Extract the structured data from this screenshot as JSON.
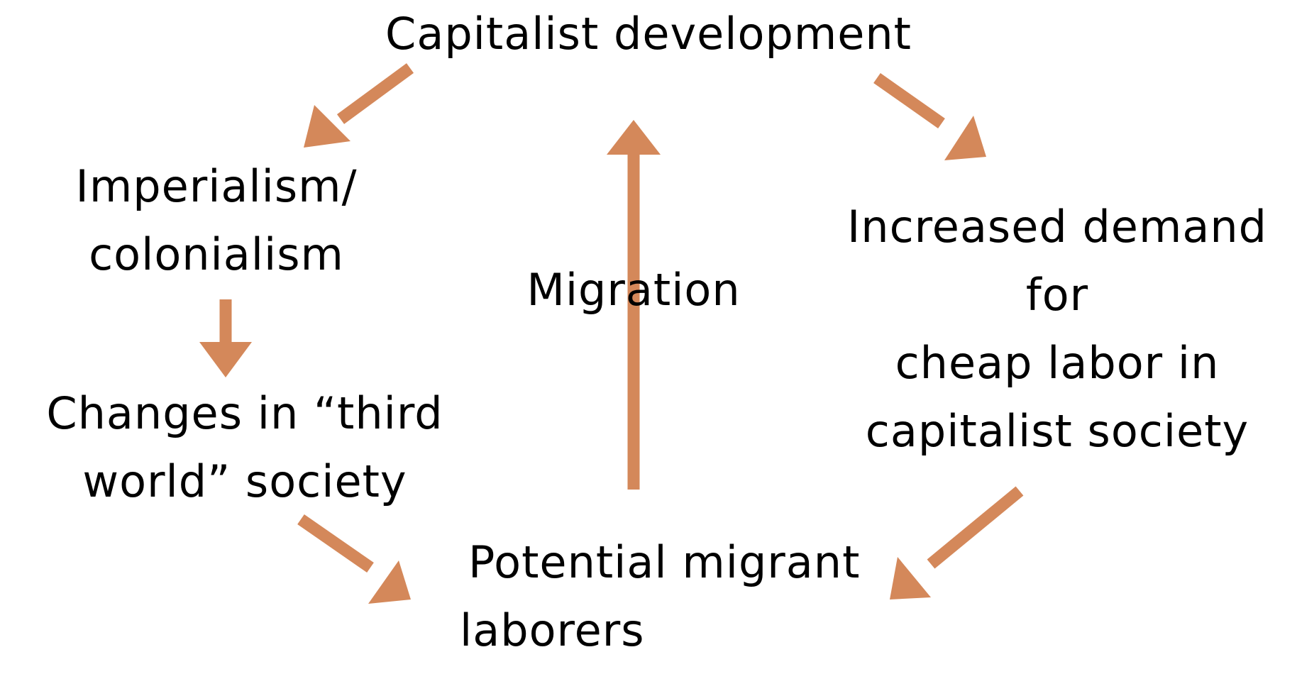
{
  "diagram": {
    "arrow_color": "#d4885a",
    "nodes": {
      "capitalist_development": {
        "lines": [
          "Capitalist development"
        ]
      },
      "imperialism": {
        "lines": [
          "Imperialism/",
          "colonialism"
        ]
      },
      "third_world_changes": {
        "lines": [
          "Changes in “third",
          "world” society"
        ]
      },
      "increased_demand": {
        "lines": [
          "Increased demand",
          "for",
          "cheap labor in",
          "capitalist society"
        ]
      },
      "potential_migrants": {
        "lines": [
          "Potential migrant",
          "laborers"
        ]
      },
      "migration": {
        "lines": [
          "Migration"
        ]
      }
    }
  }
}
